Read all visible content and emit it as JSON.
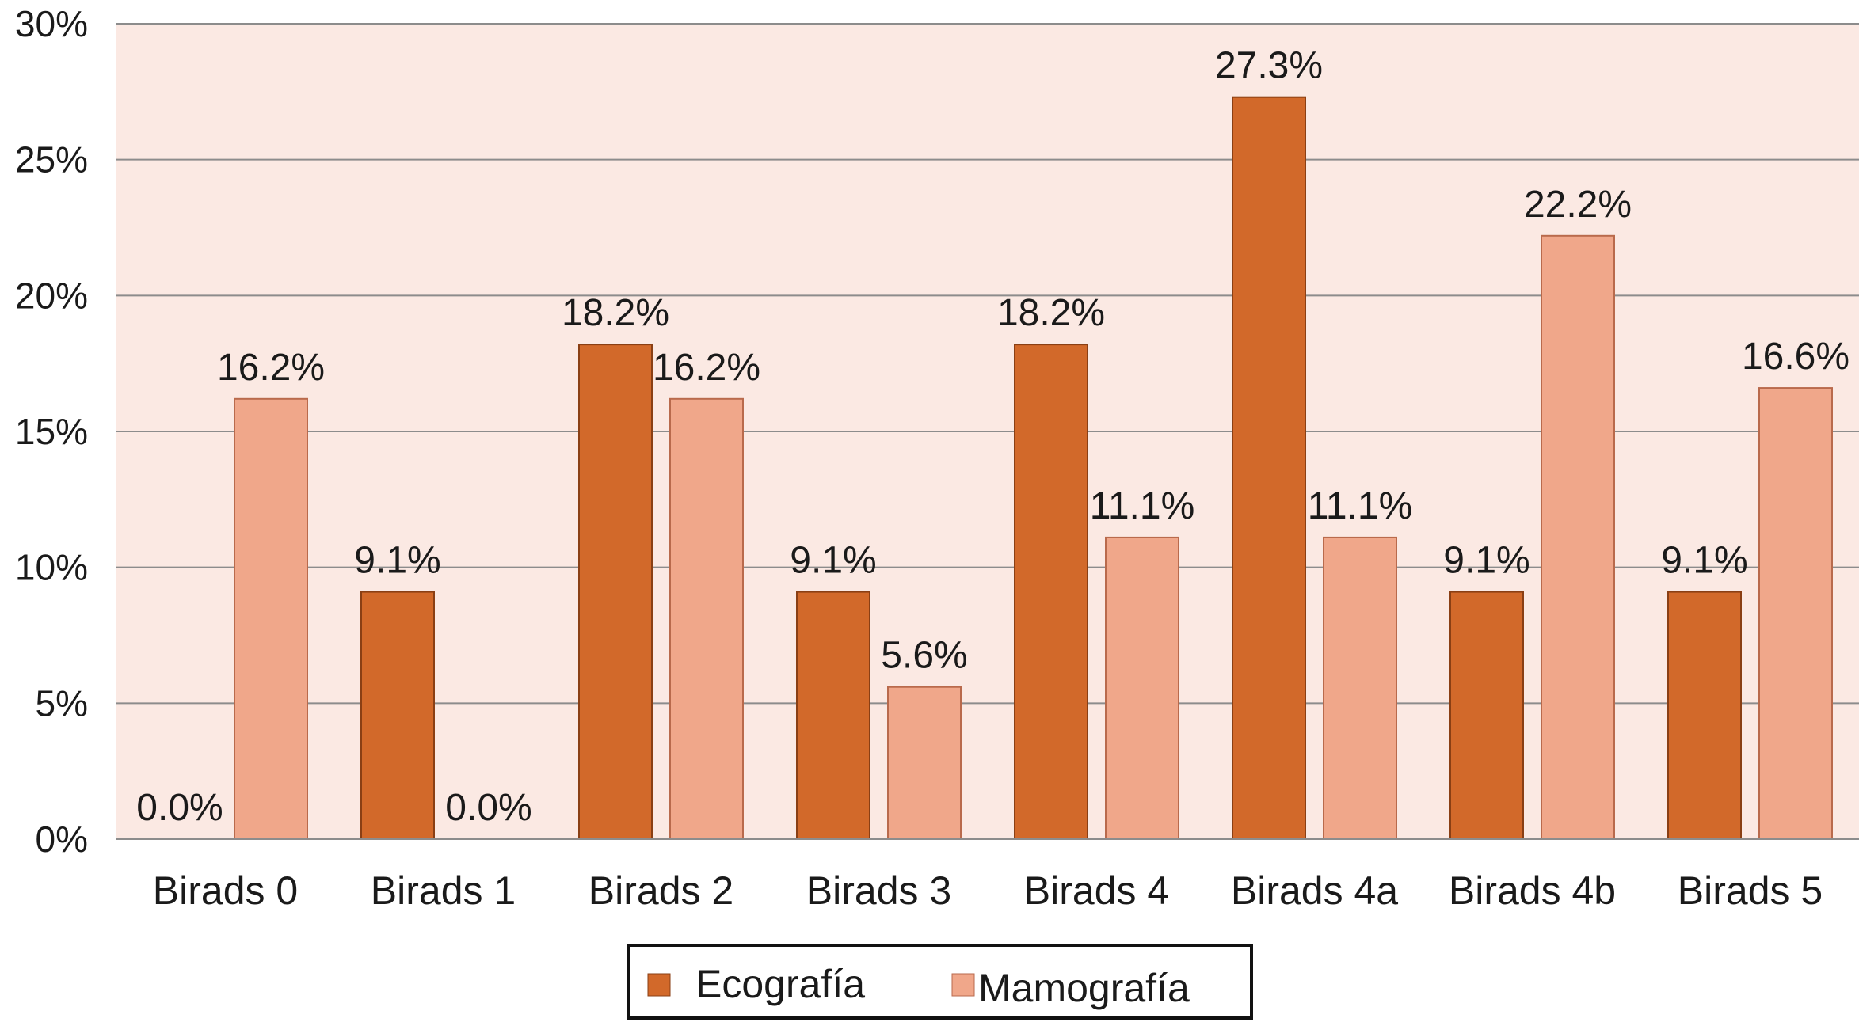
{
  "chart_data": {
    "type": "bar",
    "categories": [
      "Birads 0",
      "Birads 1",
      "Birads 2",
      "Birads 3",
      "Birads 4",
      "Birads 4a",
      "Birads 4b",
      "Birads 5"
    ],
    "series": [
      {
        "name": "Ecografía",
        "color": "#d2692a",
        "values": [
          0.0,
          9.1,
          18.2,
          9.1,
          18.2,
          27.3,
          9.1,
          9.1
        ],
        "labels": [
          "0.0%",
          "9.1%",
          "18.2%",
          "9.1%",
          "18.2%",
          "27.3%",
          "9.1%",
          "9.1%"
        ]
      },
      {
        "name": "Mamografía",
        "color": "#f0a78a",
        "values": [
          16.2,
          0.0,
          16.2,
          5.6,
          11.1,
          11.1,
          22.2,
          16.6
        ],
        "labels": [
          "16.2%",
          "0.0%",
          "16.2%",
          "5.6%",
          "11.1%",
          "11.1%",
          "22.2%",
          "16.6%"
        ]
      }
    ],
    "ylim": [
      0,
      30
    ],
    "yticks": [
      "0%",
      "5%",
      "10%",
      "15%",
      "20%",
      "25%",
      "30%"
    ],
    "ytick_values": [
      0,
      5,
      10,
      15,
      20,
      25,
      30
    ],
    "grid": true,
    "plot_background": "#fbe9e3",
    "legend_position": "bottom",
    "title": "",
    "xlabel": "",
    "ylabel": ""
  }
}
